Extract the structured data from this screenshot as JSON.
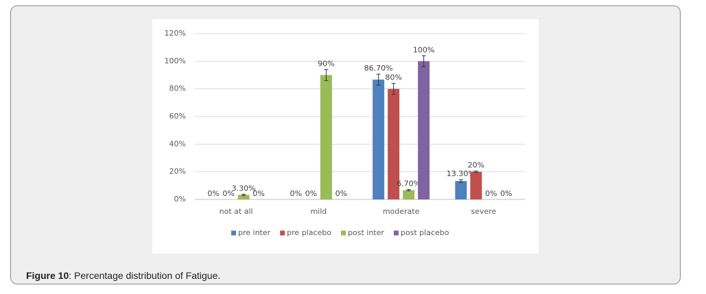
{
  "chart_data": {
    "type": "bar",
    "categories": [
      "not at all",
      "mild",
      "moderate",
      "severe"
    ],
    "series": [
      {
        "name": "pre inter",
        "color": "#4f81bd",
        "values": [
          0,
          0,
          86.7,
          13.3
        ],
        "value_labels": [
          "0%",
          "0%",
          "86.70%",
          "13.30%"
        ],
        "errors": [
          null,
          null,
          4,
          1
        ]
      },
      {
        "name": "pre placebo",
        "color": "#c0504d",
        "values": [
          0,
          0,
          80,
          20
        ],
        "value_labels": [
          "0%",
          "0%",
          "80%",
          "20%"
        ],
        "errors": [
          null,
          null,
          4,
          0.5
        ]
      },
      {
        "name": "post inter",
        "color": "#9bbb59",
        "values": [
          3.3,
          90,
          6.7,
          0
        ],
        "value_labels": [
          "3.30%",
          "90%",
          "6.70%",
          "0%"
        ],
        "errors": [
          0.5,
          4,
          0.5,
          null
        ]
      },
      {
        "name": "post placebo",
        "color": "#8064a2",
        "values": [
          0,
          0,
          100,
          0
        ],
        "value_labels": [
          "0%",
          "0%",
          "100%",
          "0%"
        ],
        "errors": [
          null,
          null,
          4,
          null
        ]
      }
    ],
    "ylim": [
      0,
      120
    ],
    "yticks": [
      {
        "value": 0,
        "label": "0%"
      },
      {
        "value": 20,
        "label": "20%"
      },
      {
        "value": 40,
        "label": "40%"
      },
      {
        "value": 60,
        "label": "60%"
      },
      {
        "value": 80,
        "label": "80%"
      },
      {
        "value": 100,
        "label": "100%"
      },
      {
        "value": 120,
        "label": "120%"
      }
    ],
    "grid": true,
    "legend": "bottom"
  },
  "caption": {
    "label": "Figure 10",
    "text": ": Percentage distribution of Fatigue."
  }
}
